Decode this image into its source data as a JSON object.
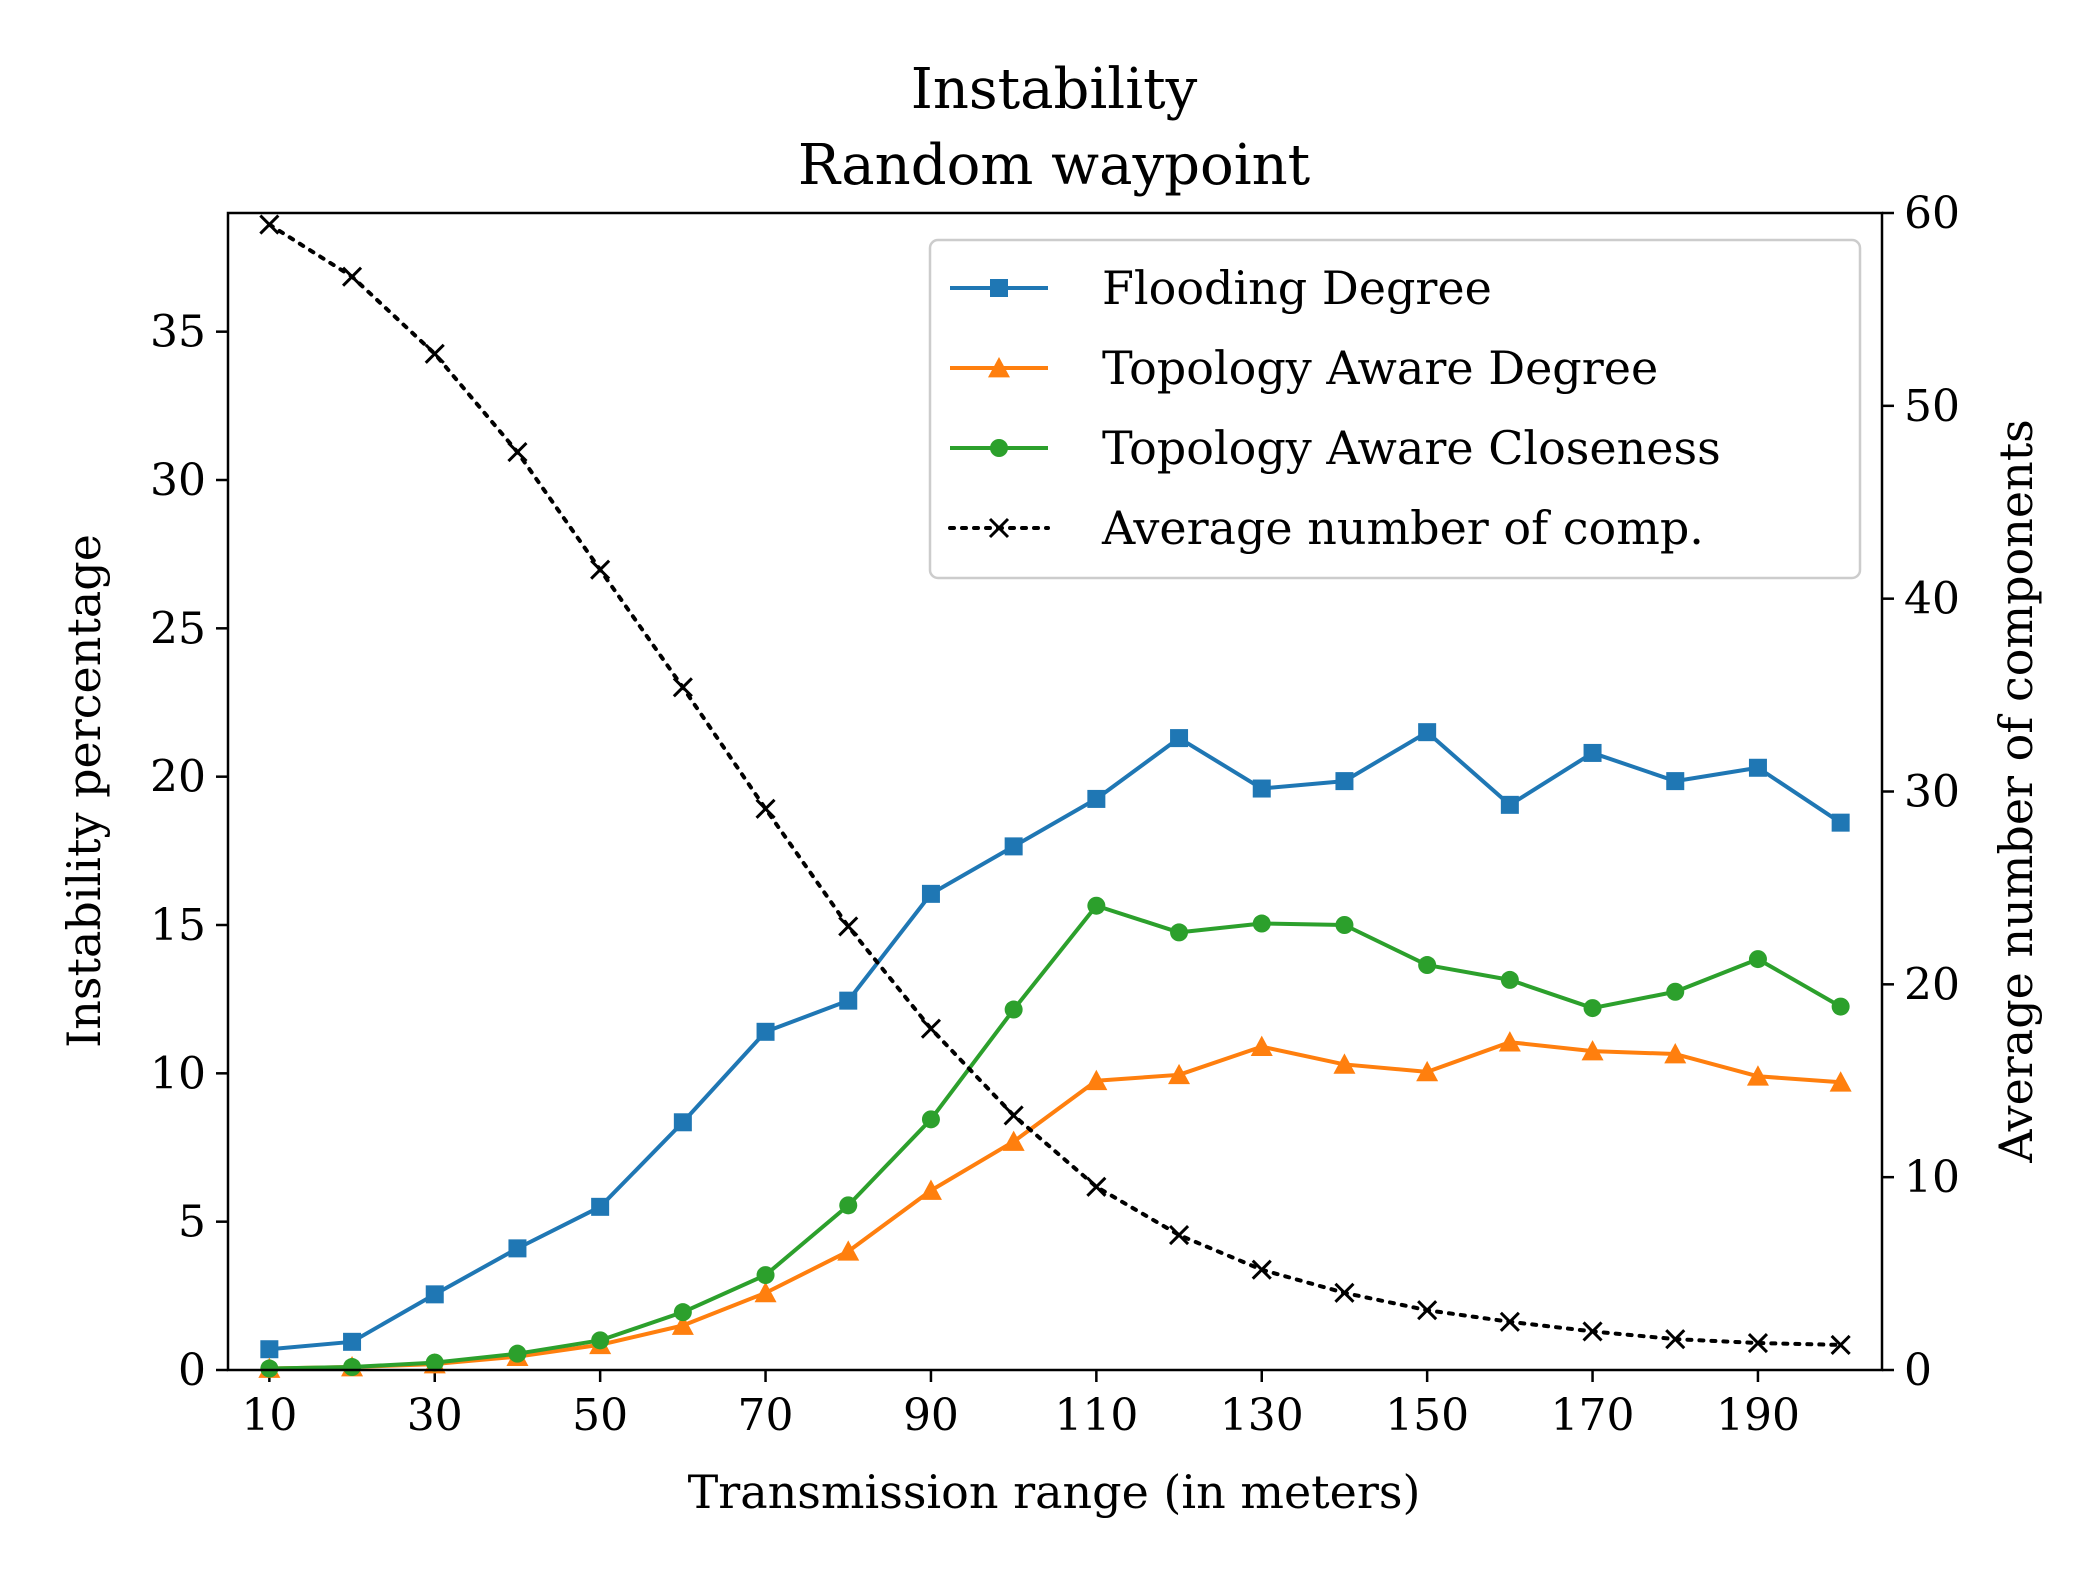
{
  "chart_data": {
    "type": "line",
    "title": [
      "Instability",
      "Random waypoint"
    ],
    "xlabel": "Transmission range (in meters)",
    "ylabel": "Instability percentage",
    "y2label": "Average number of components",
    "x": [
      10,
      20,
      30,
      40,
      50,
      60,
      70,
      80,
      90,
      100,
      110,
      120,
      130,
      140,
      150,
      160,
      170,
      180,
      190,
      200
    ],
    "xticks": [
      10,
      30,
      50,
      70,
      90,
      110,
      130,
      150,
      170,
      190
    ],
    "xlim": [
      5,
      205
    ],
    "ylim": [
      0,
      39
    ],
    "yticks": [
      0,
      5,
      10,
      15,
      20,
      25,
      30,
      35
    ],
    "y2lim": [
      0,
      60
    ],
    "y2ticks": [
      0,
      10,
      20,
      30,
      40,
      50,
      60
    ],
    "legend_position": "top-right",
    "grid": false,
    "series": [
      {
        "name": "Flooding Degree",
        "axis": "left",
        "color": "#1f77b4",
        "marker": "square",
        "linestyle": "solid",
        "values": [
          0.7,
          0.95,
          2.55,
          4.1,
          5.5,
          8.35,
          11.4,
          12.45,
          16.05,
          17.65,
          19.25,
          21.3,
          19.6,
          19.85,
          21.5,
          19.05,
          20.8,
          19.85,
          20.3,
          18.45
        ]
      },
      {
        "name": "Topology Aware Degree",
        "axis": "left",
        "color": "#ff7f0e",
        "marker": "triangle",
        "linestyle": "solid",
        "values": [
          0.05,
          0.1,
          0.2,
          0.45,
          0.85,
          1.5,
          2.6,
          4.0,
          6.05,
          7.7,
          9.75,
          9.95,
          10.9,
          10.3,
          10.05,
          11.05,
          10.75,
          10.65,
          9.9,
          9.7
        ]
      },
      {
        "name": "Topology Aware Closeness",
        "axis": "left",
        "color": "#2ca02c",
        "marker": "circle",
        "linestyle": "solid",
        "values": [
          0.05,
          0.1,
          0.25,
          0.55,
          1.0,
          1.95,
          3.2,
          5.55,
          8.45,
          12.15,
          15.65,
          14.75,
          15.05,
          15.0,
          13.65,
          13.15,
          12.2,
          12.75,
          13.85,
          12.25
        ]
      },
      {
        "name": "Average number of comp.",
        "axis": "right",
        "color": "#000000",
        "marker": "x",
        "linestyle": "dotted",
        "values": [
          59.4,
          56.7,
          52.7,
          47.6,
          41.5,
          35.4,
          29.1,
          23.0,
          17.7,
          13.2,
          9.5,
          7.0,
          5.2,
          4.0,
          3.1,
          2.5,
          2.0,
          1.6,
          1.4,
          1.3
        ]
      }
    ]
  }
}
